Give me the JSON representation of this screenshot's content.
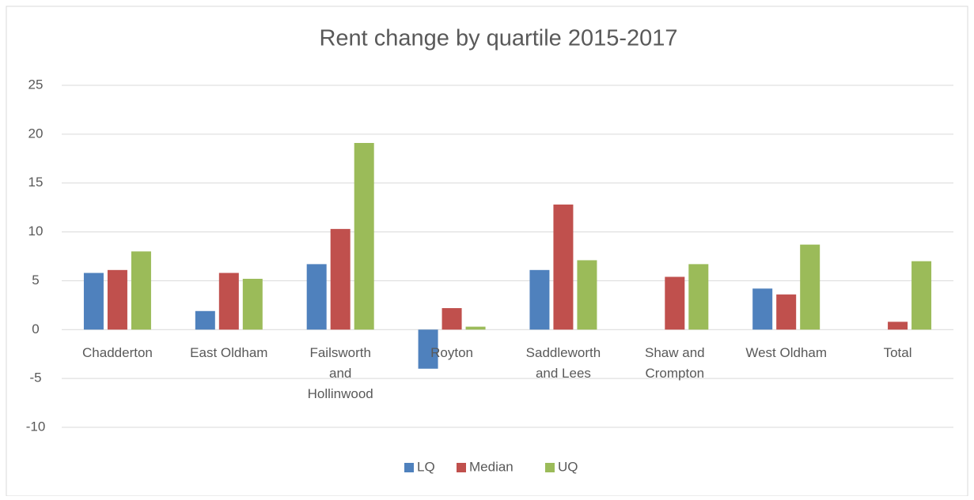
{
  "chart_data": {
    "type": "bar",
    "title": "Rent change by quartile 2015-2017",
    "categories": [
      "Chadderton",
      "East Oldham",
      "Failsworth and Hollinwood",
      "Royton",
      "Saddleworth and Lees",
      "Shaw and Crompton",
      "West Oldham",
      "Total"
    ],
    "series": [
      {
        "name": "LQ",
        "color": "#4f81bd",
        "values": [
          5.8,
          1.9,
          6.7,
          -4.0,
          6.1,
          0,
          4.2,
          0
        ]
      },
      {
        "name": "Median",
        "color": "#c0504d",
        "values": [
          6.1,
          5.8,
          10.3,
          2.2,
          12.8,
          5.4,
          3.6,
          0.8
        ]
      },
      {
        "name": "UQ",
        "color": "#9bbb59",
        "values": [
          8.0,
          5.2,
          19.1,
          0.3,
          7.1,
          6.7,
          8.7,
          7.0
        ]
      }
    ],
    "ylim": [
      -10,
      25
    ],
    "yticks": [
      -10,
      -5,
      0,
      5,
      10,
      15,
      20,
      25
    ],
    "grid": true,
    "legend": "bottom"
  }
}
